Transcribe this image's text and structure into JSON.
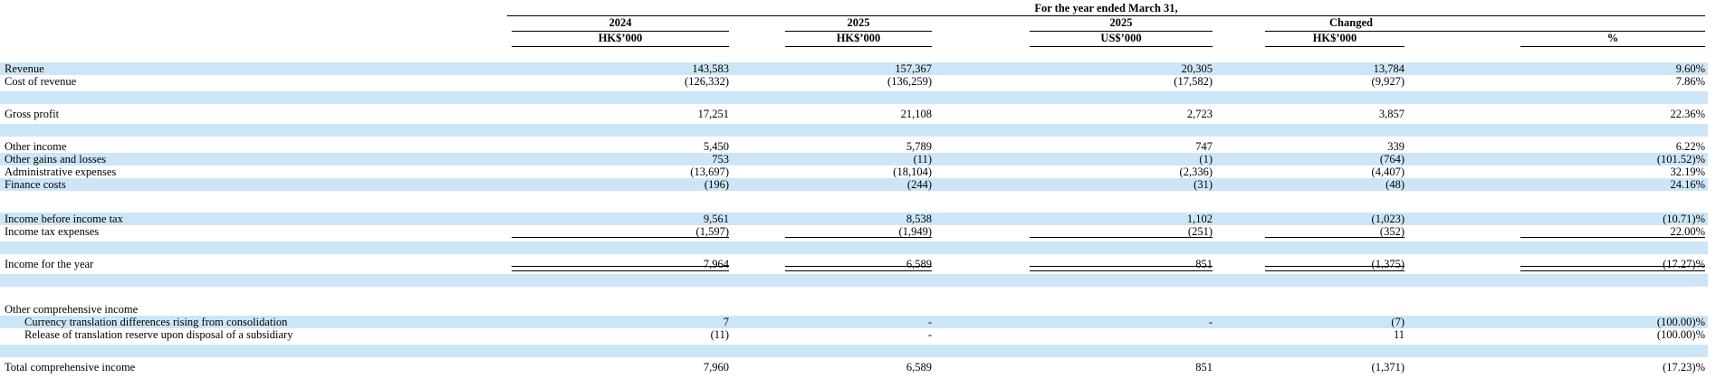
{
  "page": {
    "background": "#ffffff",
    "stripe_color": "#cce6f7",
    "rule_color": "#000000"
  },
  "table": {
    "title": "For the year ended March 31,",
    "year_headers": [
      {
        "label": "2024"
      },
      {
        "label": "2025"
      },
      {
        "label": "2025"
      },
      {
        "label": "Changed"
      }
    ],
    "unit_headers": [
      "HK$’000",
      "HK$’000",
      "US$’000",
      "HK$’000",
      "%"
    ],
    "rows": [
      {
        "type": "data",
        "shade": "blue",
        "label": "Revenue",
        "values": [
          "143,583",
          "157,367",
          "20,305",
          "13,784",
          "9.60%"
        ]
      },
      {
        "type": "data",
        "shade": "white",
        "label": "Cost of revenue",
        "values": [
          "(126,332)",
          "(136,259)",
          "(17,582)",
          "(9,927)",
          "7.86%"
        ]
      },
      {
        "type": "spacer",
        "shade": "white",
        "h": 4
      },
      {
        "type": "spacer",
        "shade": "blue",
        "h": 14
      },
      {
        "type": "spacer",
        "shade": "white",
        "h": 4
      },
      {
        "type": "data",
        "shade": "white",
        "label": "Gross profit",
        "values": [
          "17,251",
          "21,108",
          "2,723",
          "3,857",
          "22.36%"
        ]
      },
      {
        "type": "spacer",
        "shade": "white",
        "h": 4
      },
      {
        "type": "spacer",
        "shade": "blue",
        "h": 14
      },
      {
        "type": "spacer",
        "shade": "white",
        "h": 4
      },
      {
        "type": "data",
        "shade": "white",
        "label": "Other income",
        "values": [
          "5,450",
          "5,789",
          "747",
          "339",
          "6.22%"
        ]
      },
      {
        "type": "data",
        "shade": "blue",
        "label": "Other gains and losses",
        "values": [
          "753",
          "(11)",
          "(1)",
          "(764)",
          "(101.52)%"
        ]
      },
      {
        "type": "data",
        "shade": "white",
        "label": "Administrative expenses",
        "values": [
          "(13,697)",
          "(18,104)",
          "(2,336)",
          "(4,407)",
          "32.19%"
        ]
      },
      {
        "type": "data",
        "shade": "blue",
        "label": "Finance costs",
        "values": [
          "(196)",
          "(244)",
          "(31)",
          "(48)",
          "24.16%"
        ]
      },
      {
        "type": "spacer",
        "shade": "white",
        "h": 24
      },
      {
        "type": "data",
        "shade": "blue",
        "label": "Income before income tax",
        "values": [
          "9,561",
          "8,538",
          "1,102",
          "(1,023)",
          "(10.71)%"
        ]
      },
      {
        "type": "data",
        "shade": "white",
        "label": "Income tax expenses",
        "values": [
          "(1,597)",
          "(1,949)",
          "(251)",
          "(352)",
          "22.00%"
        ],
        "rule": "single"
      },
      {
        "type": "spacer",
        "shade": "white",
        "h": 4
      },
      {
        "type": "spacer",
        "shade": "blue",
        "h": 14
      },
      {
        "type": "spacer",
        "shade": "white",
        "h": 4
      },
      {
        "type": "data",
        "shade": "white",
        "label": "Income for the year",
        "values": [
          "7,964",
          "6,589",
          "851",
          "(1,375)",
          "(17.27)%"
        ],
        "rule": "double"
      },
      {
        "type": "spacer",
        "shade": "white",
        "h": 4
      },
      {
        "type": "spacer",
        "shade": "blue",
        "h": 14
      },
      {
        "type": "spacer",
        "shade": "white",
        "h": 18
      },
      {
        "type": "data",
        "shade": "white",
        "label": "Other comprehensive income",
        "values": [
          "",
          "",
          "",
          "",
          ""
        ]
      },
      {
        "type": "data",
        "shade": "blue",
        "label": "Currency translation differences rising from consolidation",
        "indent": true,
        "values": [
          "7",
          "-",
          "-",
          "(7)",
          "(100.00)%"
        ]
      },
      {
        "type": "data",
        "shade": "white",
        "label": "Release of translation reserve upon disposal of a subsidiary",
        "indent": true,
        "values": [
          "(11)",
          "-",
          "",
          "11",
          "(100.00)%"
        ]
      },
      {
        "type": "spacer",
        "shade": "white",
        "h": 4
      },
      {
        "type": "spacer",
        "shade": "blue",
        "h": 14
      },
      {
        "type": "spacer",
        "shade": "white",
        "h": 4
      },
      {
        "type": "data",
        "shade": "white",
        "label": "Total comprehensive income",
        "values": [
          "7,960",
          "6,589",
          "851",
          "(1,371)",
          "(17.23)%"
        ]
      }
    ]
  }
}
